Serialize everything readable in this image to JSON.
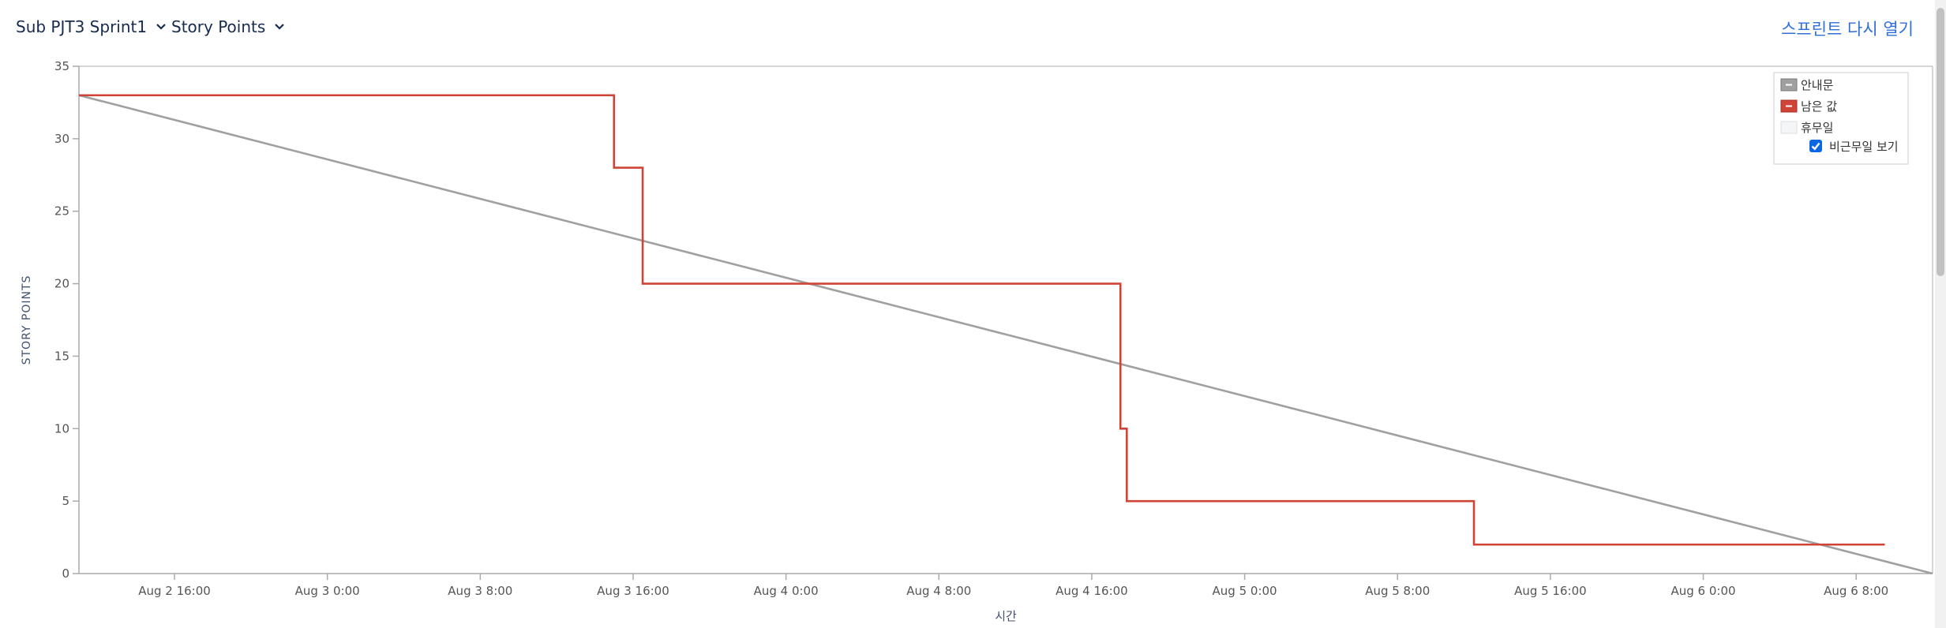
{
  "header": {
    "sprint_select": "Sub PJT3 Sprint1",
    "metric_select": "Story Points",
    "reopen_link": "스프린트 다시 열기"
  },
  "legend": {
    "guideline": "안내문",
    "remaining": "남은 값",
    "non_working": "휴무일",
    "show_non_working": "비근무일 보기",
    "show_non_working_checked": true
  },
  "colors": {
    "guideline": "#a0a0a0",
    "remaining": "#d04437",
    "accent": "#2f6fdb"
  },
  "chart_data": {
    "type": "line",
    "title": "",
    "xlabel": "시간",
    "ylabel": "STORY POINTS",
    "ylim": [
      0,
      35
    ],
    "yticks": [
      0,
      5,
      10,
      15,
      20,
      25,
      30,
      35
    ],
    "xlim": [
      "2023-08-02 11:00",
      "2023-08-06 12:00"
    ],
    "xticks": [
      {
        "t": "2023-08-02 16:00",
        "label": "Aug 2 16:00"
      },
      {
        "t": "2023-08-03 00:00",
        "label": "Aug 3 0:00"
      },
      {
        "t": "2023-08-03 08:00",
        "label": "Aug 3 8:00"
      },
      {
        "t": "2023-08-03 16:00",
        "label": "Aug 3 16:00"
      },
      {
        "t": "2023-08-04 00:00",
        "label": "Aug 4 0:00"
      },
      {
        "t": "2023-08-04 08:00",
        "label": "Aug 4 8:00"
      },
      {
        "t": "2023-08-04 16:00",
        "label": "Aug 4 16:00"
      },
      {
        "t": "2023-08-05 00:00",
        "label": "Aug 5 0:00"
      },
      {
        "t": "2023-08-05 08:00",
        "label": "Aug 5 8:00"
      },
      {
        "t": "2023-08-05 16:00",
        "label": "Aug 5 16:00"
      },
      {
        "t": "2023-08-06 00:00",
        "label": "Aug 6 0:00"
      },
      {
        "t": "2023-08-06 08:00",
        "label": "Aug 6 8:00"
      }
    ],
    "grid": false,
    "legend_position": "top-right",
    "series": [
      {
        "name": "안내문",
        "key": "guideline",
        "x": [
          "2023-08-02 11:00",
          "2023-08-06 12:00"
        ],
        "y": [
          33,
          0
        ]
      },
      {
        "name": "남은 값",
        "key": "remaining",
        "step": true,
        "x": [
          "2023-08-02 11:00",
          "2023-08-03 15:00",
          "2023-08-03 16:30",
          "2023-08-04 17:30",
          "2023-08-04 17:50",
          "2023-08-05 12:00",
          "2023-08-06 09:30"
        ],
        "y": [
          33,
          28,
          20,
          10,
          5,
          2,
          2
        ]
      }
    ]
  }
}
